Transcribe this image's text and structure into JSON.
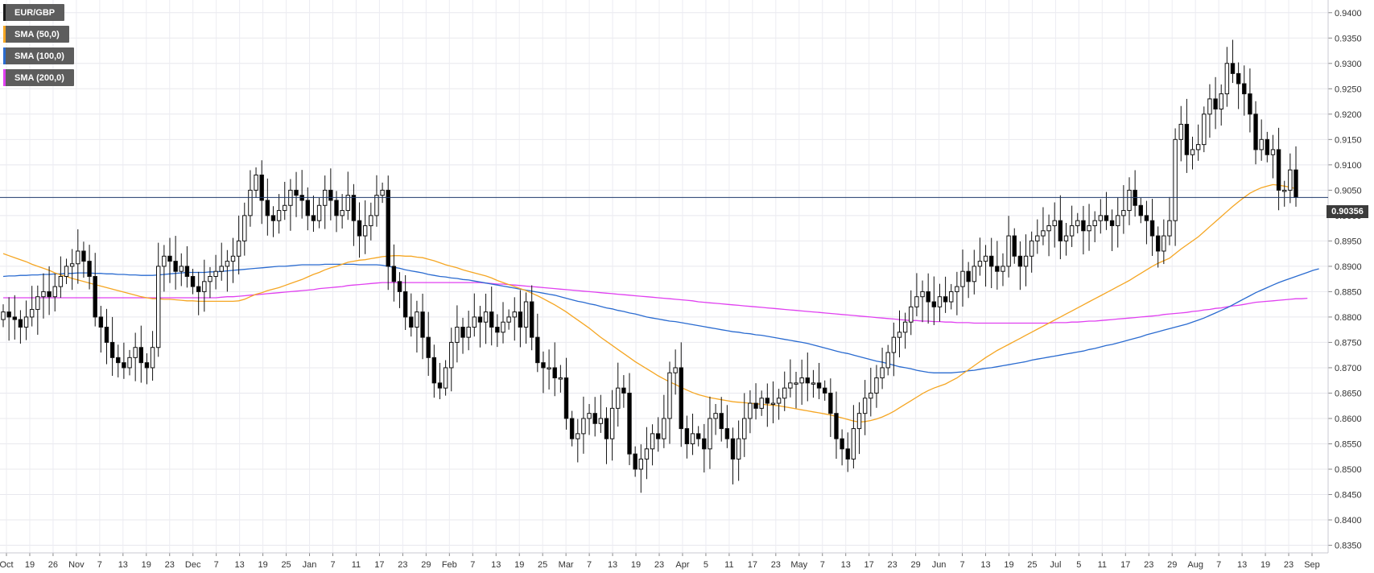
{
  "legend": [
    {
      "label": "EUR/GBP",
      "color": "#1a1a1a"
    },
    {
      "label": "SMA (50,0)",
      "color": "#f5a623"
    },
    {
      "label": "SMA (100,0)",
      "color": "#2a6bd0"
    },
    {
      "label": "SMA (200,0)",
      "color": "#e040f0"
    }
  ],
  "current_price_label": "0.90356",
  "chart_data": {
    "type": "candlestick",
    "series_name": "EUR/GBP",
    "ylim": [
      0.8335,
      0.9425
    ],
    "y_ticks": [
      "0.9400",
      "0.9350",
      "0.9300",
      "0.9250",
      "0.9200",
      "0.9150",
      "0.9100",
      "0.9050",
      "0.9000",
      "0.8950",
      "0.8900",
      "0.8850",
      "0.8800",
      "0.8750",
      "0.8700",
      "0.8650",
      "0.8600",
      "0.8550",
      "0.8500",
      "0.8450",
      "0.8400",
      "0.8350"
    ],
    "x_tick_labels": [
      "Oct",
      "19",
      "26",
      "Nov",
      "7",
      "13",
      "19",
      "23",
      "Dec",
      "7",
      "13",
      "19",
      "25",
      "Jan",
      "7",
      "11",
      "17",
      "23",
      "29",
      "Feb",
      "7",
      "13",
      "19",
      "25",
      "Mar",
      "7",
      "13",
      "19",
      "23",
      "Apr",
      "5",
      "11",
      "17",
      "23",
      "May",
      "7",
      "13",
      "17",
      "23",
      "29",
      "Jun",
      "7",
      "13",
      "19",
      "25",
      "Jul",
      "5",
      "11",
      "17",
      "23",
      "29",
      "Aug",
      "7",
      "13",
      "19",
      "23",
      "Sep"
    ],
    "current_price": 0.90356,
    "colors": {
      "up": "#ffffff",
      "down": "#000000",
      "sma50": "#f5a623",
      "sma100": "#2a6bd0",
      "sma200": "#e040f0",
      "price_line": "#1f3a6b"
    },
    "closes": [
      0.881,
      0.88,
      0.8795,
      0.878,
      0.88,
      0.8815,
      0.884,
      0.885,
      0.884,
      0.886,
      0.888,
      0.89,
      0.8905,
      0.893,
      0.891,
      0.888,
      0.88,
      0.878,
      0.875,
      0.872,
      0.871,
      0.87,
      0.872,
      0.874,
      0.871,
      0.87,
      0.874,
      0.89,
      0.892,
      0.891,
      0.889,
      0.89,
      0.888,
      0.886,
      0.885,
      0.887,
      0.888,
      0.889,
      0.89,
      0.891,
      0.892,
      0.895,
      0.9,
      0.905,
      0.908,
      0.903,
      0.9,
      0.899,
      0.901,
      0.902,
      0.905,
      0.904,
      0.903,
      0.9,
      0.899,
      0.902,
      0.905,
      0.903,
      0.9,
      0.901,
      0.904,
      0.899,
      0.896,
      0.898,
      0.9,
      0.904,
      0.905,
      0.89,
      0.887,
      0.885,
      0.88,
      0.878,
      0.881,
      0.876,
      0.872,
      0.867,
      0.866,
      0.87,
      0.875,
      0.878,
      0.876,
      0.878,
      0.88,
      0.879,
      0.881,
      0.878,
      0.877,
      0.879,
      0.88,
      0.881,
      0.878,
      0.883,
      0.876,
      0.871,
      0.87,
      0.87,
      0.868,
      0.868,
      0.86,
      0.856,
      0.857,
      0.86,
      0.861,
      0.859,
      0.86,
      0.856,
      0.862,
      0.866,
      0.865,
      0.853,
      0.85,
      0.852,
      0.854,
      0.857,
      0.856,
      0.86,
      0.869,
      0.87,
      0.858,
      0.855,
      0.857,
      0.856,
      0.854,
      0.86,
      0.861,
      0.858,
      0.856,
      0.852,
      0.856,
      0.86,
      0.863,
      0.862,
      0.864,
      0.863,
      0.863,
      0.864,
      0.866,
      0.867,
      0.867,
      0.868,
      0.867,
      0.867,
      0.866,
      0.865,
      0.861,
      0.856,
      0.854,
      0.852,
      0.858,
      0.861,
      0.864,
      0.865,
      0.868,
      0.87,
      0.873,
      0.876,
      0.877,
      0.879,
      0.882,
      0.884,
      0.885,
      0.883,
      0.882,
      0.884,
      0.883,
      0.885,
      0.886,
      0.889,
      0.887,
      0.89,
      0.891,
      0.892,
      0.89,
      0.889,
      0.89,
      0.896,
      0.892,
      0.89,
      0.892,
      0.895,
      0.896,
      0.897,
      0.898,
      0.899,
      0.895,
      0.896,
      0.898,
      0.899,
      0.897,
      0.898,
      0.899,
      0.9,
      0.899,
      0.898,
      0.9,
      0.901,
      0.905,
      0.902,
      0.9,
      0.899,
      0.896,
      0.893,
      0.896,
      0.899,
      0.915,
      0.918,
      0.912,
      0.913,
      0.914,
      0.92,
      0.923,
      0.921,
      0.924,
      0.93,
      0.928,
      0.926,
      0.924,
      0.92,
      0.913,
      0.915,
      0.912,
      0.913,
      0.905,
      0.905,
      0.909,
      0.9036
    ],
    "sma50": [
      0.8925,
      0.8921,
      0.8917,
      0.8913,
      0.8909,
      0.8904,
      0.89,
      0.8896,
      0.8892,
      0.8887,
      0.8883,
      0.888,
      0.8876,
      0.8873,
      0.887,
      0.8867,
      0.8864,
      0.8861,
      0.8858,
      0.8855,
      0.8852,
      0.8849,
      0.8846,
      0.8843,
      0.884,
      0.8838,
      0.8836,
      0.8836,
      0.8835,
      0.8835,
      0.8834,
      0.8833,
      0.8832,
      0.8832,
      0.8831,
      0.8831,
      0.8831,
      0.8831,
      0.8831,
      0.8831,
      0.8831,
      0.8832,
      0.8835,
      0.884,
      0.8845,
      0.8848,
      0.8852,
      0.8855,
      0.8858,
      0.8862,
      0.8866,
      0.887,
      0.8874,
      0.8879,
      0.8884,
      0.8888,
      0.8893,
      0.8897,
      0.89,
      0.8904,
      0.8908,
      0.891,
      0.8912,
      0.8913,
      0.8915,
      0.8917,
      0.8919,
      0.892,
      0.8921,
      0.8921,
      0.892,
      0.892,
      0.8918,
      0.8917,
      0.8914,
      0.8911,
      0.8907,
      0.8903,
      0.89,
      0.8897,
      0.8893,
      0.889,
      0.8887,
      0.8884,
      0.8881,
      0.8877,
      0.8872,
      0.8868,
      0.8864,
      0.886,
      0.8856,
      0.8852,
      0.8847,
      0.8842,
      0.8836,
      0.883,
      0.8824,
      0.8817,
      0.881,
      0.8802,
      0.8794,
      0.8786,
      0.8778,
      0.8769,
      0.876,
      0.8752,
      0.8744,
      0.8736,
      0.8728,
      0.872,
      0.8712,
      0.8705,
      0.8698,
      0.8691,
      0.8684,
      0.8678,
      0.8672,
      0.8667,
      0.8661,
      0.8656,
      0.8651,
      0.8647,
      0.8644,
      0.8641,
      0.8639,
      0.8637,
      0.8635,
      0.8633,
      0.8632,
      0.8631,
      0.863,
      0.8629,
      0.8628,
      0.8627,
      0.8626,
      0.8625,
      0.8623,
      0.8621,
      0.8619,
      0.8617,
      0.8615,
      0.8613,
      0.8611,
      0.8609,
      0.8607,
      0.8604,
      0.8601,
      0.8598,
      0.8595,
      0.8593,
      0.8594,
      0.8596,
      0.8599,
      0.8603,
      0.8608,
      0.8614,
      0.8621,
      0.8628,
      0.8635,
      0.8642,
      0.8649,
      0.8655,
      0.866,
      0.8664,
      0.8668,
      0.8674,
      0.868,
      0.8688,
      0.8696,
      0.8704,
      0.8712,
      0.872,
      0.8727,
      0.8734,
      0.874,
      0.8746,
      0.8752,
      0.8758,
      0.8764,
      0.877,
      0.8776,
      0.8782,
      0.8788,
      0.8794,
      0.88,
      0.8806,
      0.8812,
      0.8818,
      0.8824,
      0.883,
      0.8836,
      0.8842,
      0.8848,
      0.8854,
      0.886,
      0.8866,
      0.8872,
      0.8879,
      0.8886,
      0.8893,
      0.89,
      0.8906,
      0.8911,
      0.8916,
      0.8925,
      0.8934,
      0.8942,
      0.895,
      0.8958,
      0.8968,
      0.8978,
      0.8988,
      0.8998,
      0.9008,
      0.9018,
      0.9027,
      0.9036,
      0.9044,
      0.905,
      0.9055,
      0.9058,
      0.9061,
      0.906,
      0.9058,
      0.9056,
      0.9053
    ],
    "sma100": [
      0.888,
      0.8881,
      0.8881,
      0.8882,
      0.8882,
      0.8883,
      0.8883,
      0.8884,
      0.8884,
      0.8885,
      0.8885,
      0.8886,
      0.8886,
      0.8887,
      0.8887,
      0.8887,
      0.8886,
      0.8886,
      0.8885,
      0.8885,
      0.8884,
      0.8884,
      0.8883,
      0.8883,
      0.8882,
      0.8882,
      0.8882,
      0.8883,
      0.8884,
      0.8885,
      0.8886,
      0.8887,
      0.8888,
      0.8888,
      0.8888,
      0.8888,
      0.8889,
      0.8889,
      0.889,
      0.8891,
      0.8892,
      0.8893,
      0.8894,
      0.8895,
      0.8896,
      0.8897,
      0.8898,
      0.8899,
      0.89,
      0.89,
      0.8901,
      0.8902,
      0.8903,
      0.8903,
      0.8903,
      0.8903,
      0.8904,
      0.8904,
      0.8904,
      0.8904,
      0.8904,
      0.8904,
      0.8903,
      0.8903,
      0.8903,
      0.8903,
      0.8902,
      0.89,
      0.8898,
      0.8896,
      0.8893,
      0.8891,
      0.8889,
      0.8887,
      0.8884,
      0.8882,
      0.888,
      0.8879,
      0.8877,
      0.8876,
      0.8874,
      0.8873,
      0.8871,
      0.8869,
      0.8867,
      0.8865,
      0.8863,
      0.8861,
      0.8859,
      0.8857,
      0.8855,
      0.8853,
      0.8851,
      0.8849,
      0.8847,
      0.8845,
      0.8843,
      0.884,
      0.8837,
      0.8834,
      0.8831,
      0.8829,
      0.8826,
      0.8824,
      0.8821,
      0.8818,
      0.8816,
      0.8813,
      0.8811,
      0.8808,
      0.8806,
      0.8803,
      0.88,
      0.8798,
      0.8796,
      0.8794,
      0.8792,
      0.8791,
      0.8789,
      0.8787,
      0.8785,
      0.8783,
      0.8781,
      0.8779,
      0.8777,
      0.8775,
      0.8773,
      0.8771,
      0.877,
      0.8768,
      0.8767,
      0.8765,
      0.8764,
      0.8762,
      0.876,
      0.8758,
      0.8756,
      0.8754,
      0.8752,
      0.875,
      0.8748,
      0.8745,
      0.8742,
      0.8739,
      0.8736,
      0.8733,
      0.873,
      0.8728,
      0.8725,
      0.8722,
      0.8719,
      0.8716,
      0.8713,
      0.8711,
      0.8708,
      0.8705,
      0.8702,
      0.87,
      0.8698,
      0.8695,
      0.8693,
      0.8691,
      0.869,
      0.869,
      0.869,
      0.869,
      0.8691,
      0.8692,
      0.8694,
      0.8695,
      0.8697,
      0.8699,
      0.87,
      0.8702,
      0.8704,
      0.8706,
      0.8708,
      0.871,
      0.8712,
      0.8715,
      0.8717,
      0.8719,
      0.8721,
      0.8723,
      0.8725,
      0.8727,
      0.8729,
      0.8731,
      0.8733,
      0.8736,
      0.8738,
      0.8741,
      0.8744,
      0.8746,
      0.8749,
      0.8752,
      0.8755,
      0.8758,
      0.8761,
      0.8765,
      0.8768,
      0.8771,
      0.8774,
      0.8777,
      0.878,
      0.8783,
      0.8786,
      0.879,
      0.8794,
      0.8798,
      0.8803,
      0.8808,
      0.8813,
      0.8818,
      0.8824,
      0.883,
      0.8836,
      0.8842,
      0.8848,
      0.8853,
      0.8858,
      0.8863,
      0.8868,
      0.8872,
      0.8876,
      0.888,
      0.8884,
      0.8888,
      0.8892,
      0.8895
    ],
    "sma200": [
      0.8838,
      0.8838,
      0.8838,
      0.8838,
      0.8838,
      0.8838,
      0.8838,
      0.8838,
      0.8838,
      0.8838,
      0.8838,
      0.8838,
      0.8838,
      0.8838,
      0.8838,
      0.8838,
      0.8838,
      0.8838,
      0.8838,
      0.8838,
      0.8838,
      0.8838,
      0.8838,
      0.8838,
      0.8838,
      0.8838,
      0.8838,
      0.8838,
      0.8838,
      0.8838,
      0.8838,
      0.8838,
      0.8838,
      0.8838,
      0.8838,
      0.8838,
      0.8838,
      0.8838,
      0.8839,
      0.884,
      0.884,
      0.8841,
      0.8842,
      0.8843,
      0.8844,
      0.8845,
      0.8846,
      0.8847,
      0.8848,
      0.8849,
      0.885,
      0.8851,
      0.8852,
      0.8853,
      0.8854,
      0.8856,
      0.8857,
      0.8858,
      0.8859,
      0.886,
      0.8862,
      0.8863,
      0.8864,
      0.8865,
      0.8866,
      0.8867,
      0.8868,
      0.8868,
      0.8868,
      0.8868,
      0.8868,
      0.8868,
      0.8868,
      0.8868,
      0.8868,
      0.8868,
      0.8868,
      0.8868,
      0.8868,
      0.8868,
      0.8868,
      0.8868,
      0.8868,
      0.8868,
      0.8867,
      0.8866,
      0.8865,
      0.8865,
      0.8864,
      0.8863,
      0.8862,
      0.8861,
      0.886,
      0.8859,
      0.8858,
      0.8857,
      0.8856,
      0.8855,
      0.8854,
      0.8853,
      0.8852,
      0.8851,
      0.885,
      0.8849,
      0.8848,
      0.8847,
      0.8846,
      0.8845,
      0.8844,
      0.8843,
      0.8842,
      0.8841,
      0.884,
      0.8839,
      0.8838,
      0.8837,
      0.8836,
      0.8835,
      0.8834,
      0.8833,
      0.8832,
      0.883,
      0.8829,
      0.8828,
      0.8827,
      0.8826,
      0.8825,
      0.8824,
      0.8823,
      0.8822,
      0.8821,
      0.882,
      0.8819,
      0.8818,
      0.8817,
      0.8816,
      0.8815,
      0.8814,
      0.8813,
      0.8812,
      0.8811,
      0.881,
      0.8809,
      0.8808,
      0.8807,
      0.8806,
      0.8805,
      0.8804,
      0.8803,
      0.8802,
      0.8801,
      0.88,
      0.8799,
      0.8798,
      0.8797,
      0.8796,
      0.8795,
      0.8794,
      0.8793,
      0.8793,
      0.8792,
      0.8792,
      0.8791,
      0.8791,
      0.879,
      0.879,
      0.8789,
      0.8789,
      0.8789,
      0.8788,
      0.8788,
      0.8788,
      0.8788,
      0.8788,
      0.8788,
      0.8788,
      0.8788,
      0.8788,
      0.8788,
      0.8788,
      0.8788,
      0.8788,
      0.8788,
      0.8789,
      0.8789,
      0.8789,
      0.879,
      0.879,
      0.8791,
      0.8792,
      0.8792,
      0.8793,
      0.8794,
      0.8795,
      0.8796,
      0.8797,
      0.8798,
      0.8799,
      0.88,
      0.8801,
      0.8802,
      0.8803,
      0.8805,
      0.8806,
      0.8807,
      0.8808,
      0.8809,
      0.8811,
      0.8812,
      0.8814,
      0.8815,
      0.8817,
      0.8818,
      0.882,
      0.8822,
      0.8823,
      0.8825,
      0.8827,
      0.8829,
      0.883,
      0.8831,
      0.8832,
      0.8833,
      0.8834,
      0.8835,
      0.8836,
      0.8836,
      0.8837
    ]
  }
}
